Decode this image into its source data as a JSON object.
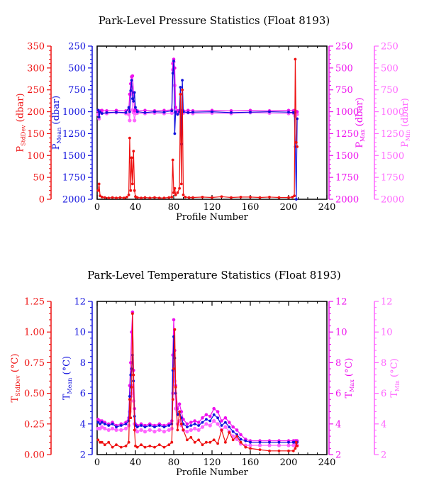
{
  "colors": {
    "stddev": "#ee1111",
    "mean": "#1111dd",
    "max": "#ee11ee",
    "min": "#ff66ff",
    "frame": "#000000"
  },
  "chart_data": [
    {
      "type": "line",
      "title": "Park-Level Pressure Statistics (Float 8193)",
      "xlabel": "Profile Number",
      "xlim": [
        0,
        240
      ],
      "x_ticks": [
        "0",
        "40",
        "80",
        "120",
        "160",
        "200",
        "240"
      ],
      "axes": [
        {
          "id": "stddev",
          "side": "left-outer",
          "label_main": "P",
          "label_sub": "StdDev",
          "label_unit": " (dbar)",
          "lim": [
            0,
            350
          ],
          "inverted": false,
          "ticks": [
            "0",
            "50",
            "100",
            "150",
            "200",
            "250",
            "300",
            "350"
          ]
        },
        {
          "id": "mean",
          "side": "left-inner",
          "label_main": "P",
          "label_sub": "Mean",
          "label_unit": " (dbar)",
          "lim": [
            250,
            2000
          ],
          "inverted": true,
          "ticks": [
            "250",
            "500",
            "750",
            "1000",
            "1250",
            "1500",
            "1750",
            "2000"
          ]
        },
        {
          "id": "max",
          "side": "right-inner",
          "label_main": "P",
          "label_sub": "Max",
          "label_unit": " (dbar)",
          "lim": [
            250,
            2000
          ],
          "inverted": true,
          "ticks": [
            "250",
            "500",
            "750",
            "1000",
            "1250",
            "1500",
            "1750",
            "2000"
          ]
        },
        {
          "id": "min",
          "side": "right-outer",
          "label_main": "P",
          "label_sub": "Min",
          "label_unit": " (dbar)",
          "lim": [
            250,
            2000
          ],
          "inverted": true,
          "ticks": [
            "250",
            "500",
            "750",
            "1000",
            "1250",
            "1500",
            "1750",
            "2000"
          ]
        }
      ],
      "series": [
        {
          "axis": "stddev",
          "x": [
            1,
            2,
            3,
            5,
            8,
            12,
            16,
            20,
            24,
            28,
            31,
            33,
            34,
            35,
            36,
            37,
            38,
            39,
            40,
            42,
            46,
            50,
            55,
            60,
            65,
            70,
            75,
            78,
            79,
            80,
            81,
            82,
            84,
            86,
            87,
            88,
            89,
            90,
            92,
            96,
            100,
            110,
            120,
            130,
            140,
            150,
            160,
            170,
            180,
            190,
            200,
            204,
            206,
            207,
            208,
            209
          ],
          "y": [
            20,
            35,
            8,
            5,
            4,
            3,
            4,
            3,
            4,
            3,
            5,
            10,
            140,
            20,
            95,
            35,
            110,
            20,
            6,
            4,
            3,
            4,
            3,
            4,
            3,
            3,
            4,
            5,
            90,
            15,
            25,
            10,
            15,
            25,
            240,
            35,
            250,
            10,
            5,
            4,
            4,
            5,
            4,
            6,
            4,
            5,
            5,
            4,
            5,
            4,
            4,
            5,
            8,
            320,
            130,
            120
          ]
        },
        {
          "axis": "mean",
          "x": [
            1,
            2,
            3,
            5,
            10,
            20,
            30,
            33,
            34,
            35,
            36,
            37,
            38,
            39,
            40,
            42,
            50,
            60,
            70,
            78,
            79,
            80,
            81,
            82,
            84,
            86,
            87,
            88,
            89,
            90,
            95,
            100,
            120,
            140,
            160,
            180,
            200,
            205,
            206,
            207,
            208,
            209
          ],
          "y": [
            980,
            1060,
            1000,
            1020,
            1010,
            1005,
            1010,
            950,
            1000,
            760,
            640,
            850,
            880,
            780,
            950,
            1000,
            1010,
            1000,
            1005,
            990,
            560,
            420,
            1250,
            1000,
            1030,
            1000,
            720,
            1370,
            640,
            1000,
            1010,
            1005,
            1000,
            1010,
            1005,
            1000,
            1005,
            1010,
            1010,
            1400,
            2000,
            1080
          ]
        },
        {
          "axis": "max",
          "x": [
            1,
            2,
            3,
            5,
            10,
            20,
            30,
            33,
            34,
            35,
            36,
            37,
            38,
            39,
            40,
            42,
            50,
            60,
            70,
            78,
            79,
            80,
            81,
            82,
            84,
            86,
            87,
            88,
            89,
            90,
            95,
            100,
            120,
            140,
            160,
            180,
            200,
            205,
            206,
            207,
            208,
            209
          ],
          "y": [
            990,
            1000,
            990,
            985,
            990,
            985,
            990,
            980,
            800,
            680,
            600,
            590,
            780,
            990,
            985,
            990,
            985,
            990,
            985,
            980,
            450,
            400,
            500,
            950,
            990,
            985,
            990,
            1000,
            985,
            990,
            985,
            990,
            985,
            990,
            985,
            990,
            985,
            990,
            985,
            990,
            1000,
            1000
          ]
        },
        {
          "axis": "min",
          "x": [
            1,
            2,
            3,
            5,
            10,
            20,
            30,
            33,
            34,
            35,
            36,
            37,
            38,
            39,
            40,
            42,
            50,
            60,
            70,
            78,
            79,
            80,
            81,
            82,
            84,
            86,
            87,
            88,
            89,
            90,
            95,
            100,
            120,
            140,
            160,
            180,
            200,
            205,
            206,
            207,
            208,
            209
          ],
          "y": [
            1030,
            1080,
            1010,
            1015,
            1020,
            1010,
            1020,
            1030,
            1100,
            800,
            720,
            980,
            1010,
            1100,
            1020,
            1015,
            1020,
            1015,
            1020,
            1015,
            520,
            430,
            700,
            1010,
            1020,
            1015,
            1020,
            1010,
            1020,
            1015,
            1010,
            1020,
            1015,
            1020,
            1010,
            1015,
            1020,
            1015,
            1020,
            1050,
            1020,
            1030
          ]
        }
      ]
    },
    {
      "type": "line",
      "title": "Park-Level Temperature Statistics (Float 8193)",
      "xlabel": "Profile Number",
      "xlim": [
        0,
        240
      ],
      "x_ticks": [
        "0",
        "40",
        "80",
        "120",
        "160",
        "200",
        "240"
      ],
      "axes": [
        {
          "id": "stddev",
          "side": "left-outer",
          "label_main": "T",
          "label_sub": "StdDev",
          "label_unit": " (°C)",
          "lim": [
            0,
            1.25
          ],
          "inverted": false,
          "ticks": [
            "0.00",
            "0.25",
            "0.50",
            "0.75",
            "1.00",
            "1.25"
          ]
        },
        {
          "id": "mean",
          "side": "left-inner",
          "label_main": "T",
          "label_sub": "Mean",
          "label_unit": " (°C)",
          "lim": [
            2,
            12
          ],
          "inverted": false,
          "ticks": [
            "2",
            "4",
            "6",
            "8",
            "10",
            "12"
          ]
        },
        {
          "id": "max",
          "side": "right-inner",
          "label_main": "T",
          "label_sub": "Max",
          "label_unit": " (°C)",
          "lim": [
            2,
            12
          ],
          "inverted": false,
          "ticks": [
            "2",
            "4",
            "6",
            "8",
            "10",
            "12"
          ]
        },
        {
          "id": "min",
          "side": "right-outer",
          "label_main": "T",
          "label_sub": "Min",
          "label_unit": " (°C)",
          "lim": [
            2,
            12
          ],
          "inverted": false,
          "ticks": [
            "2",
            "4",
            "6",
            "8",
            "10",
            "12"
          ]
        }
      ],
      "series": [
        {
          "axis": "stddev",
          "x": [
            1,
            3,
            5,
            8,
            12,
            16,
            20,
            25,
            30,
            33,
            34,
            35,
            36,
            37,
            38,
            39,
            40,
            42,
            46,
            50,
            55,
            60,
            65,
            70,
            75,
            78,
            79,
            80,
            81,
            82,
            84,
            86,
            88,
            90,
            94,
            98,
            102,
            106,
            110,
            114,
            118,
            122,
            126,
            130,
            134,
            138,
            142,
            146,
            150,
            155,
            160,
            170,
            180,
            190,
            200,
            205,
            207,
            208,
            209
          ],
          "y": [
            0.12,
            0.1,
            0.1,
            0.08,
            0.1,
            0.06,
            0.08,
            0.06,
            0.07,
            0.1,
            0.45,
            0.3,
            0.55,
            1.15,
            0.65,
            0.2,
            0.07,
            0.06,
            0.08,
            0.06,
            0.07,
            0.06,
            0.08,
            0.06,
            0.08,
            0.1,
            0.45,
            0.7,
            1.02,
            0.55,
            0.2,
            0.35,
            0.25,
            0.2,
            0.12,
            0.14,
            0.1,
            0.12,
            0.08,
            0.1,
            0.1,
            0.12,
            0.09,
            0.2,
            0.1,
            0.18,
            0.12,
            0.15,
            0.1,
            0.06,
            0.05,
            0.04,
            0.03,
            0.03,
            0.03,
            0.03,
            0.05,
            0.1,
            0.07
          ]
        },
        {
          "axis": "mean",
          "x": [
            1,
            3,
            5,
            8,
            12,
            16,
            20,
            25,
            30,
            33,
            34,
            35,
            36,
            37,
            38,
            39,
            40,
            42,
            46,
            50,
            55,
            60,
            65,
            70,
            75,
            78,
            79,
            80,
            81,
            82,
            84,
            86,
            88,
            90,
            94,
            98,
            102,
            106,
            110,
            114,
            118,
            122,
            126,
            130,
            134,
            138,
            142,
            146,
            150,
            155,
            160,
            170,
            180,
            190,
            200,
            205,
            207,
            208,
            209
          ],
          "y": [
            4.1,
            4.0,
            4.1,
            4.0,
            3.9,
            4.0,
            3.8,
            3.9,
            4.0,
            4.2,
            5.8,
            7.2,
            7.6,
            8.5,
            6.8,
            4.5,
            3.9,
            3.8,
            3.9,
            3.8,
            3.9,
            3.8,
            3.9,
            3.8,
            3.9,
            4.0,
            7.5,
            9.7,
            8.3,
            6.0,
            4.6,
            4.8,
            4.4,
            4.0,
            3.8,
            3.9,
            4.0,
            3.9,
            4.1,
            4.3,
            4.2,
            4.6,
            4.4,
            3.9,
            4.1,
            3.8,
            3.5,
            3.3,
            3.0,
            2.9,
            2.8,
            2.8,
            2.8,
            2.8,
            2.8,
            2.8,
            2.8,
            2.8,
            2.8
          ]
        },
        {
          "axis": "max",
          "x": [
            1,
            3,
            5,
            8,
            12,
            16,
            20,
            25,
            30,
            33,
            34,
            35,
            36,
            37,
            38,
            39,
            40,
            42,
            46,
            50,
            55,
            60,
            65,
            70,
            75,
            78,
            79,
            80,
            81,
            82,
            84,
            86,
            88,
            90,
            94,
            98,
            102,
            106,
            110,
            114,
            118,
            122,
            126,
            130,
            134,
            138,
            142,
            146,
            150,
            155,
            160,
            170,
            180,
            190,
            200,
            205,
            207,
            208,
            209
          ],
          "y": [
            4.3,
            4.2,
            4.2,
            4.1,
            4.0,
            4.1,
            3.9,
            4.0,
            4.1,
            4.4,
            6.5,
            8.0,
            10.0,
            11.3,
            7.5,
            5.0,
            4.0,
            3.9,
            4.0,
            3.9,
            4.0,
            3.9,
            4.0,
            3.9,
            4.0,
            4.2,
            8.5,
            10.8,
            8.8,
            6.5,
            5.0,
            5.3,
            4.8,
            4.3,
            4.0,
            4.1,
            4.2,
            4.1,
            4.4,
            4.6,
            4.5,
            5.0,
            4.8,
            4.2,
            4.4,
            4.1,
            3.8,
            3.6,
            3.3,
            3.0,
            2.9,
            2.9,
            2.9,
            2.9,
            2.9,
            2.9,
            2.9,
            2.9,
            2.9
          ]
        },
        {
          "axis": "min",
          "x": [
            1,
            3,
            5,
            8,
            12,
            16,
            20,
            25,
            30,
            33,
            34,
            35,
            36,
            37,
            38,
            39,
            40,
            42,
            46,
            50,
            55,
            60,
            65,
            70,
            75,
            78,
            79,
            80,
            81,
            82,
            84,
            86,
            88,
            90,
            94,
            98,
            102,
            106,
            110,
            114,
            118,
            122,
            126,
            130,
            134,
            138,
            142,
            146,
            150,
            155,
            160,
            170,
            180,
            190,
            200,
            205,
            207,
            208,
            209
          ],
          "y": [
            3.7,
            3.7,
            3.8,
            3.7,
            3.6,
            3.7,
            3.6,
            3.6,
            3.7,
            3.9,
            4.8,
            5.8,
            6.0,
            6.5,
            5.5,
            4.0,
            3.6,
            3.5,
            3.6,
            3.5,
            3.6,
            3.5,
            3.6,
            3.5,
            3.6,
            3.7,
            6.0,
            7.5,
            6.8,
            5.0,
            4.0,
            4.2,
            3.9,
            3.6,
            3.5,
            3.6,
            3.7,
            3.6,
            3.8,
            4.0,
            3.9,
            4.2,
            4.0,
            3.6,
            3.8,
            3.5,
            3.2,
            3.0,
            2.7,
            2.6,
            2.6,
            2.6,
            2.6,
            2.6,
            2.6,
            2.6,
            2.6,
            2.6,
            2.6
          ]
        }
      ]
    }
  ]
}
